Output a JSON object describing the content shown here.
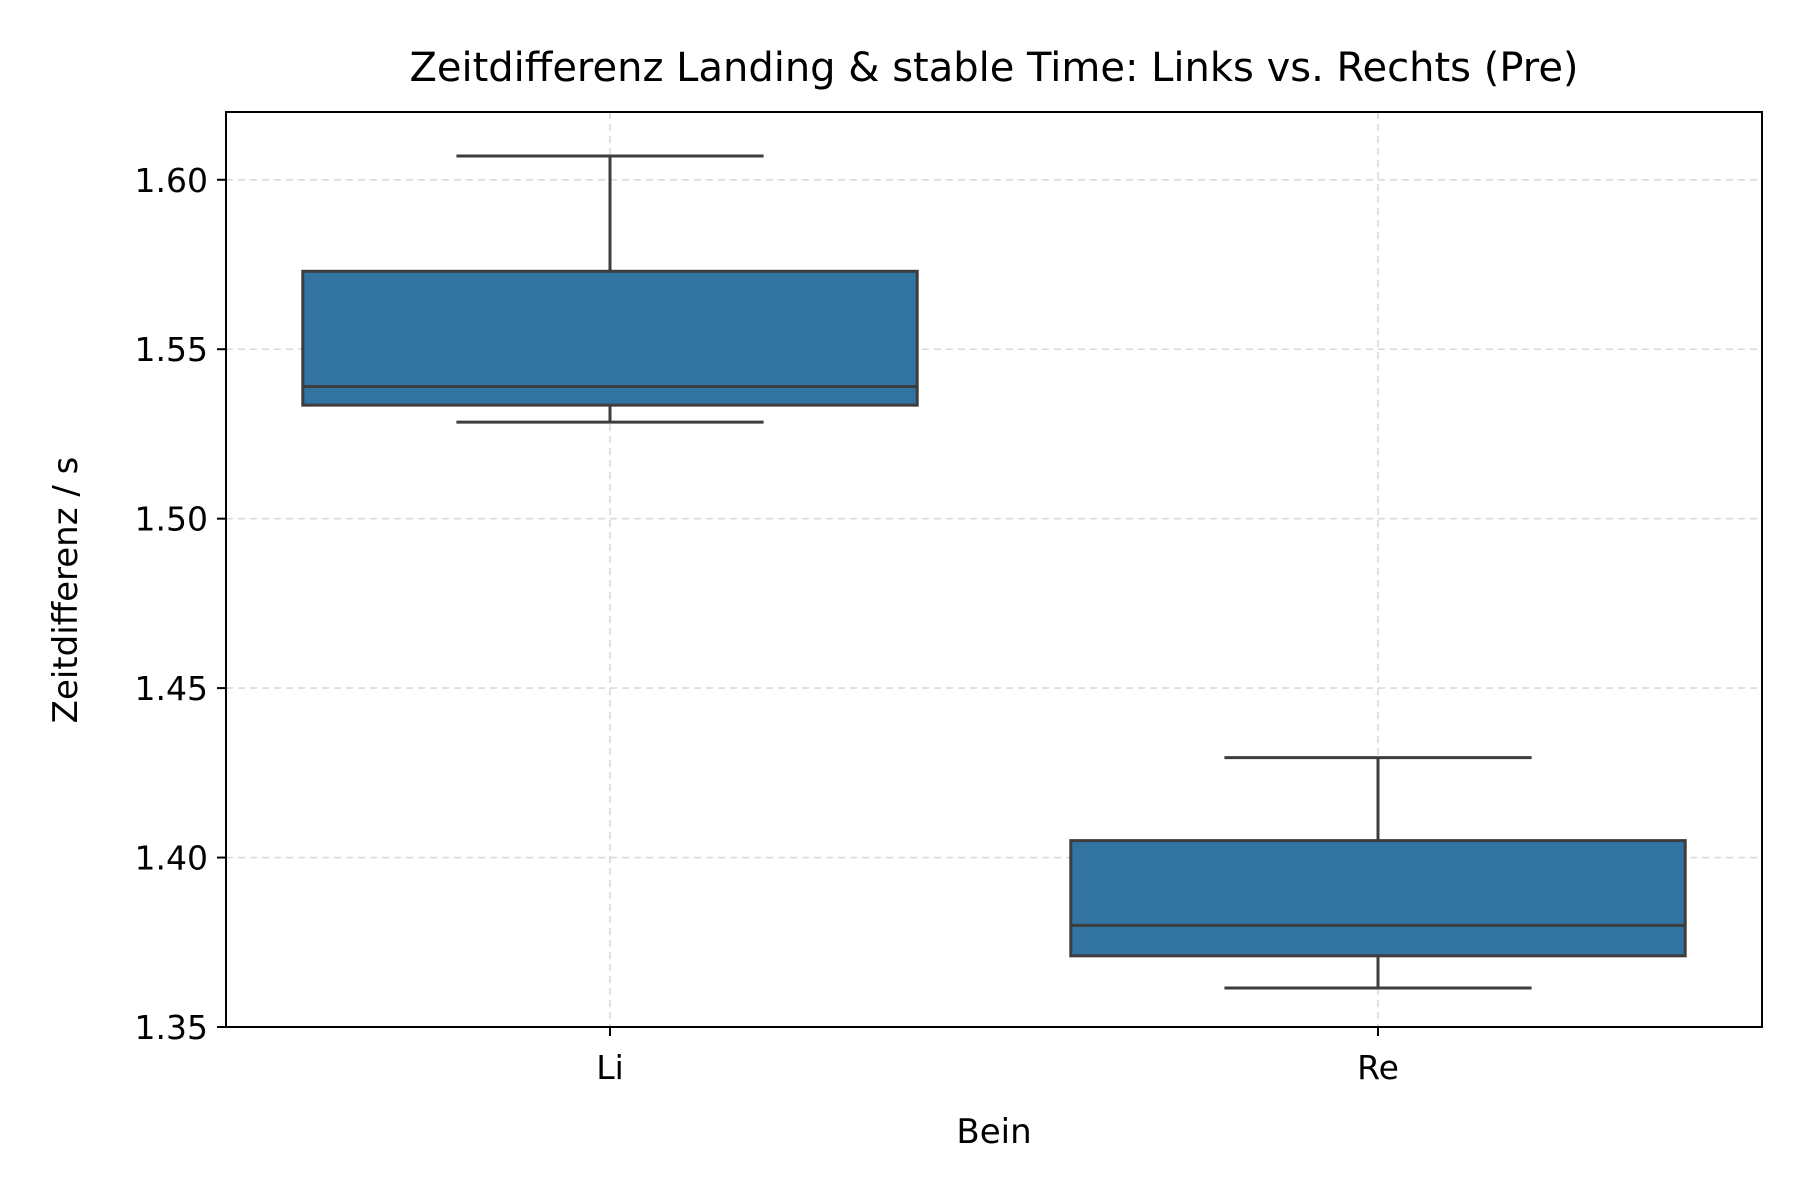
{
  "chart_data": {
    "type": "box",
    "title": "Zeitdifferenz Landing & stable Time: Links vs. Rechts (Pre)",
    "xlabel": "Bein",
    "ylabel": "Zeitdifferenz / s",
    "ylim": [
      1.35,
      1.62
    ],
    "yticks": [
      "1.35",
      "1.40",
      "1.45",
      "1.50",
      "1.55",
      "1.60"
    ],
    "grid": true,
    "colors": {
      "box_fill": "#3274a1",
      "box_edge": "#3d3d3d",
      "grid": "#d9d9d9"
    },
    "categories": [
      "Li",
      "Re"
    ],
    "boxes": [
      {
        "category": "Li",
        "whisker_low": 1.5285,
        "q1": 1.5335,
        "median": 1.539,
        "q3": 1.573,
        "whisker_high": 1.607
      },
      {
        "category": "Re",
        "whisker_low": 1.3615,
        "q1": 1.371,
        "median": 1.38,
        "q3": 1.405,
        "whisker_high": 1.4295
      }
    ]
  }
}
